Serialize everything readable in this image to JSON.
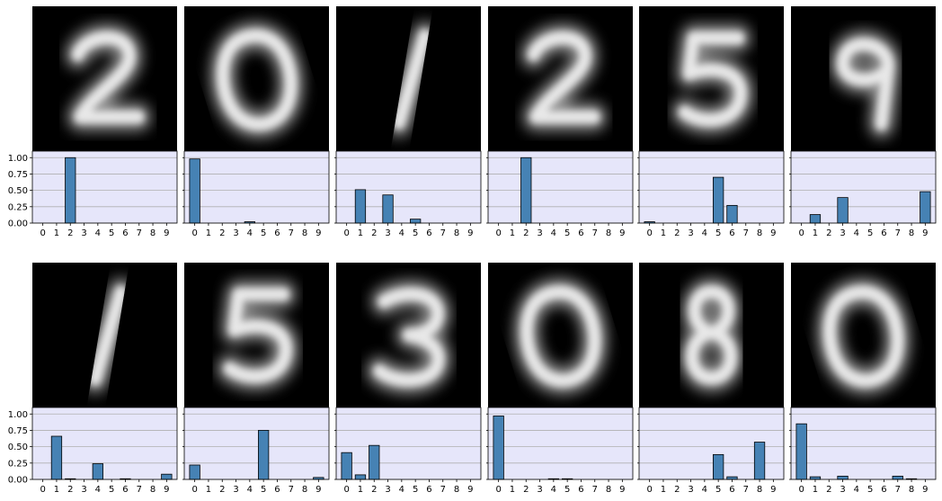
{
  "figure": {
    "layout": {
      "rows": 2,
      "columns": 6
    },
    "image_style": "blurred white digit shapes on black background",
    "colors": {
      "plot_background": "#e6e6fa",
      "bar_fill": "#4682b4",
      "bar_edge": "#000000",
      "grid": "#b0b0b0",
      "image_background": "#000000"
    }
  },
  "chart_data": [
    {
      "type": "bar",
      "digit_shown": "2",
      "categories": [
        "0",
        "1",
        "2",
        "3",
        "4",
        "5",
        "6",
        "7",
        "8",
        "9"
      ],
      "values": [
        0,
        0,
        1.0,
        0,
        0,
        0,
        0,
        0,
        0,
        0
      ],
      "ylim": [
        0,
        1.1
      ],
      "yticks": [
        "0.00",
        "0.25",
        "0.50",
        "0.75",
        "1.00"
      ],
      "grid": "y"
    },
    {
      "type": "bar",
      "digit_shown": "0",
      "categories": [
        "0",
        "1",
        "2",
        "3",
        "4",
        "5",
        "6",
        "7",
        "8",
        "9"
      ],
      "values": [
        0.98,
        0,
        0,
        0,
        0.02,
        0,
        0,
        0,
        0,
        0
      ],
      "ylim": [
        0,
        1.1
      ],
      "yticks": [
        "0.00",
        "0.25",
        "0.50",
        "0.75",
        "1.00"
      ],
      "grid": "y"
    },
    {
      "type": "bar",
      "digit_shown": "1",
      "categories": [
        "0",
        "1",
        "2",
        "3",
        "4",
        "5",
        "6",
        "7",
        "8",
        "9"
      ],
      "values": [
        0,
        0.51,
        0,
        0.43,
        0,
        0.06,
        0,
        0,
        0,
        0
      ],
      "ylim": [
        0,
        1.1
      ],
      "yticks": [
        "0.00",
        "0.25",
        "0.50",
        "0.75",
        "1.00"
      ],
      "grid": "y"
    },
    {
      "type": "bar",
      "digit_shown": "2",
      "categories": [
        "0",
        "1",
        "2",
        "3",
        "4",
        "5",
        "6",
        "7",
        "8",
        "9"
      ],
      "values": [
        0,
        0,
        1.0,
        0,
        0,
        0,
        0,
        0,
        0,
        0
      ],
      "ylim": [
        0,
        1.1
      ],
      "yticks": [
        "0.00",
        "0.25",
        "0.50",
        "0.75",
        "1.00"
      ],
      "grid": "y"
    },
    {
      "type": "bar",
      "digit_shown": "5",
      "categories": [
        "0",
        "1",
        "2",
        "3",
        "4",
        "5",
        "6",
        "7",
        "8",
        "9"
      ],
      "values": [
        0.02,
        0,
        0,
        0,
        0,
        0.7,
        0.27,
        0,
        0,
        0
      ],
      "ylim": [
        0,
        1.1
      ],
      "yticks": [
        "0.00",
        "0.25",
        "0.50",
        "0.75",
        "1.00"
      ],
      "grid": "y"
    },
    {
      "type": "bar",
      "digit_shown": "9",
      "categories": [
        "0",
        "1",
        "2",
        "3",
        "4",
        "5",
        "6",
        "7",
        "8",
        "9"
      ],
      "values": [
        0,
        0.13,
        0,
        0.39,
        0,
        0,
        0,
        0,
        0,
        0.48
      ],
      "ylim": [
        0,
        1.1
      ],
      "yticks": [
        "0.00",
        "0.25",
        "0.50",
        "0.75",
        "1.00"
      ],
      "grid": "y"
    },
    {
      "type": "bar",
      "digit_shown": "1",
      "categories": [
        "0",
        "1",
        "2",
        "3",
        "4",
        "5",
        "6",
        "7",
        "8",
        "9"
      ],
      "values": [
        0,
        0.66,
        0.01,
        0,
        0.24,
        0,
        0.01,
        0,
        0,
        0.08
      ],
      "ylim": [
        0,
        1.1
      ],
      "yticks": [
        "0.00",
        "0.25",
        "0.50",
        "0.75",
        "1.00"
      ],
      "grid": "y"
    },
    {
      "type": "bar",
      "digit_shown": "5",
      "categories": [
        "0",
        "1",
        "2",
        "3",
        "4",
        "5",
        "6",
        "7",
        "8",
        "9"
      ],
      "values": [
        0.22,
        0,
        0,
        0,
        0,
        0.75,
        0,
        0,
        0,
        0.03
      ],
      "ylim": [
        0,
        1.1
      ],
      "yticks": [
        "0.00",
        "0.25",
        "0.50",
        "0.75",
        "1.00"
      ],
      "grid": "y"
    },
    {
      "type": "bar",
      "digit_shown": "3",
      "categories": [
        "0",
        "1",
        "2",
        "3",
        "4",
        "5",
        "6",
        "7",
        "8",
        "9"
      ],
      "values": [
        0.41,
        0.07,
        0.52,
        0,
        0,
        0,
        0,
        0,
        0,
        0
      ],
      "ylim": [
        0,
        1.1
      ],
      "yticks": [
        "0.00",
        "0.25",
        "0.50",
        "0.75",
        "1.00"
      ],
      "grid": "y"
    },
    {
      "type": "bar",
      "digit_shown": "0",
      "categories": [
        "0",
        "1",
        "2",
        "3",
        "4",
        "5",
        "6",
        "7",
        "8",
        "9"
      ],
      "values": [
        0.97,
        0,
        0,
        0,
        0.01,
        0.01,
        0,
        0,
        0,
        0
      ],
      "ylim": [
        0,
        1.1
      ],
      "yticks": [
        "0.00",
        "0.25",
        "0.50",
        "0.75",
        "1.00"
      ],
      "grid": "y"
    },
    {
      "type": "bar",
      "digit_shown": "8",
      "categories": [
        "0",
        "1",
        "2",
        "3",
        "4",
        "5",
        "6",
        "7",
        "8",
        "9"
      ],
      "values": [
        0,
        0,
        0,
        0,
        0,
        0.38,
        0.04,
        0,
        0.57,
        0
      ],
      "ylim": [
        0,
        1.1
      ],
      "yticks": [
        "0.00",
        "0.25",
        "0.50",
        "0.75",
        "1.00"
      ],
      "grid": "y"
    },
    {
      "type": "bar",
      "digit_shown": "0",
      "categories": [
        "0",
        "1",
        "2",
        "3",
        "4",
        "5",
        "6",
        "7",
        "8",
        "9"
      ],
      "values": [
        0.85,
        0.04,
        0,
        0.05,
        0,
        0,
        0,
        0.05,
        0.01,
        0
      ],
      "ylim": [
        0,
        1.1
      ],
      "yticks": [
        "0.00",
        "0.25",
        "0.50",
        "0.75",
        "1.00"
      ],
      "grid": "y"
    }
  ]
}
